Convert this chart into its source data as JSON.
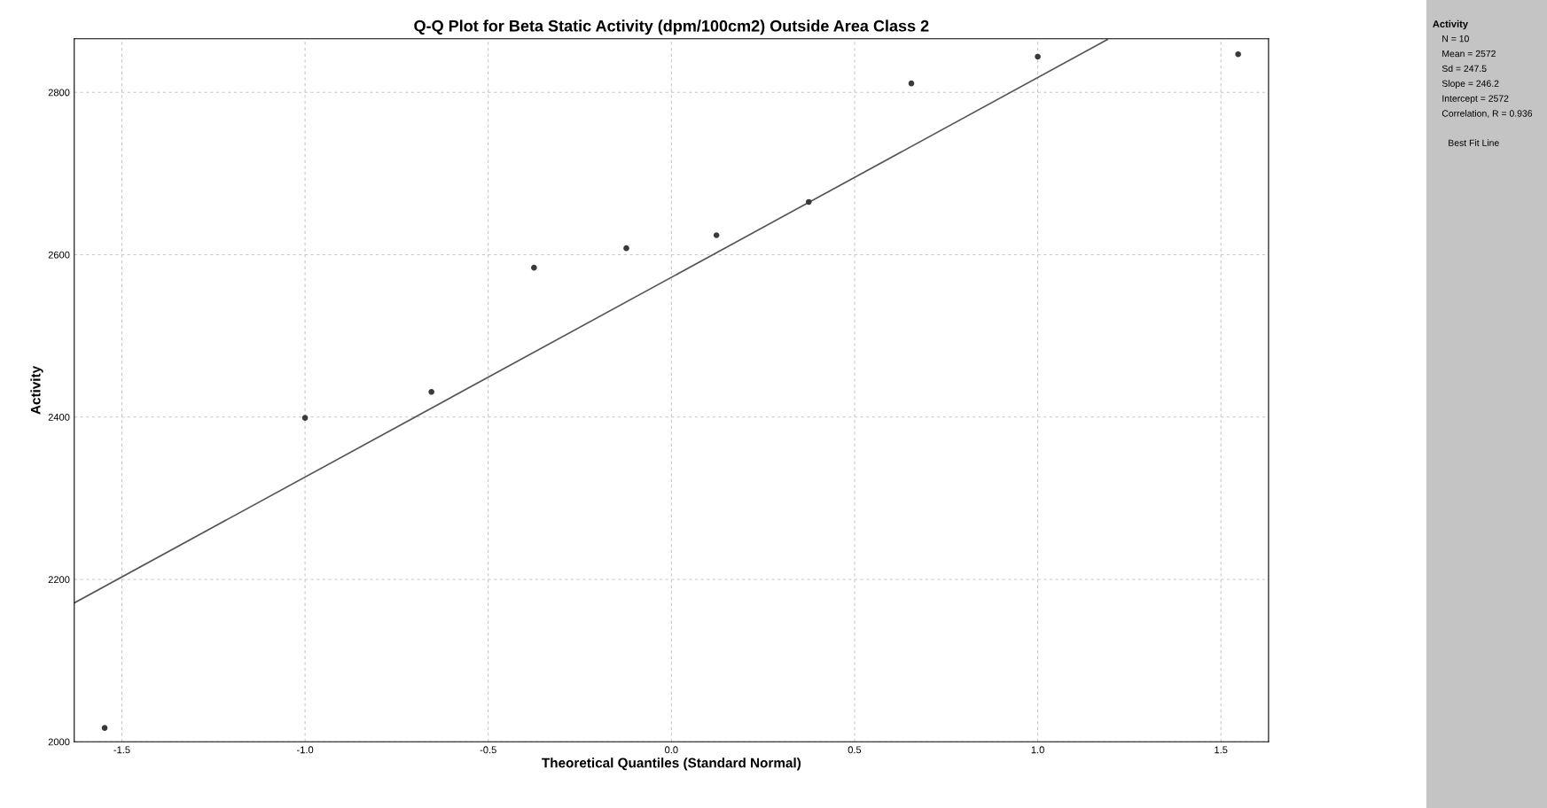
{
  "chart_data": {
    "type": "scatter",
    "title": "Q-Q Plot for Beta Static Activity (dpm/100cm2) Outside Area Class 2",
    "xlabel": "Theoretical Quantiles (Standard Normal)",
    "ylabel": "Activity",
    "series": [
      {
        "marker": "circle",
        "color": "#3a3a3a",
        "x": [
          -1.547,
          -1.0,
          -0.655,
          -0.375,
          -0.123,
          0.123,
          0.375,
          0.655,
          1.0,
          1.547
        ],
        "values": [
          2017,
          2399,
          2431,
          2584,
          2608,
          2624,
          2665,
          2811,
          2844,
          2847
        ]
      },
      {
        "type": "line",
        "marker": "none",
        "color": "#555555",
        "x": [
          -1.63,
          1.19
        ],
        "values": [
          2171,
          2865
        ]
      }
    ],
    "xlim": [
      -1.63,
      1.63
    ],
    "ylim": [
      2000,
      2866
    ],
    "xticks": [
      -1.5,
      {
        "value": -1,
        "label": "-1.0"
      },
      -0.5,
      {
        "value": 0,
        "label": "0.0"
      },
      0.5,
      {
        "value": 1,
        "label": "1.0"
      },
      1.5
    ],
    "yticks": [
      2000,
      2200,
      2400,
      2600,
      2800
    ],
    "grid": true,
    "annotations": [
      "Activity",
      "N = 10",
      "Mean = 2572",
      "Sd = 247.5",
      "Slope = 246.2",
      "Intercept = 2572",
      "Correlation, R = 0.936",
      "Best Fit Line"
    ]
  }
}
